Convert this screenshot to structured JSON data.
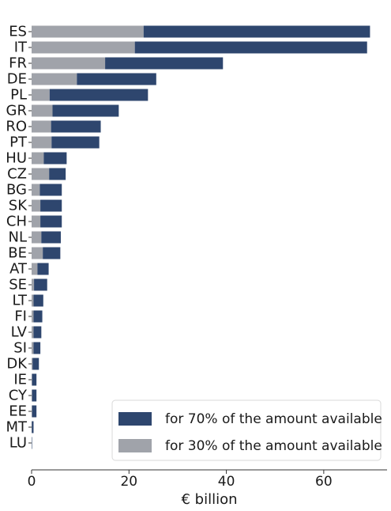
{
  "chart_data": {
    "type": "bar",
    "orientation": "horizontal",
    "stacked": true,
    "categories": [
      "ES",
      "IT",
      "FR",
      "DE",
      "PL",
      "GR",
      "RO",
      "PT",
      "HU",
      "CZ",
      "BG",
      "SK",
      "CH",
      "NL",
      "BE",
      "AT",
      "SE",
      "LT",
      "FI",
      "LV",
      "SI",
      "DK",
      "IE",
      "CY",
      "EE",
      "MT",
      "LU"
    ],
    "series": [
      {
        "name": "for 30% of the amount available",
        "color": "#a0a3aa",
        "values": [
          23.0,
          21.2,
          15.1,
          9.3,
          3.7,
          4.3,
          4.0,
          4.1,
          2.5,
          3.6,
          1.7,
          1.8,
          1.8,
          2.0,
          2.3,
          1.2,
          0.5,
          0.4,
          0.4,
          0.4,
          0.4,
          0.2,
          0.1,
          0.1,
          0.1,
          0.05,
          0.02
        ]
      },
      {
        "name": "for 70% of the amount available",
        "color": "#2e466e",
        "values": [
          46.5,
          47.7,
          24.2,
          16.3,
          20.2,
          13.6,
          10.2,
          9.8,
          4.7,
          3.4,
          4.5,
          4.4,
          4.4,
          4.0,
          3.6,
          2.3,
          2.7,
          2.0,
          1.8,
          1.6,
          1.4,
          1.3,
          0.9,
          0.9,
          0.9,
          0.35,
          0.08
        ]
      }
    ],
    "xlabel": "€ billion",
    "xlim": [
      0,
      73
    ],
    "xticks": [
      0,
      20,
      40,
      60
    ],
    "grid": false,
    "legend_position": "bottom-right"
  }
}
